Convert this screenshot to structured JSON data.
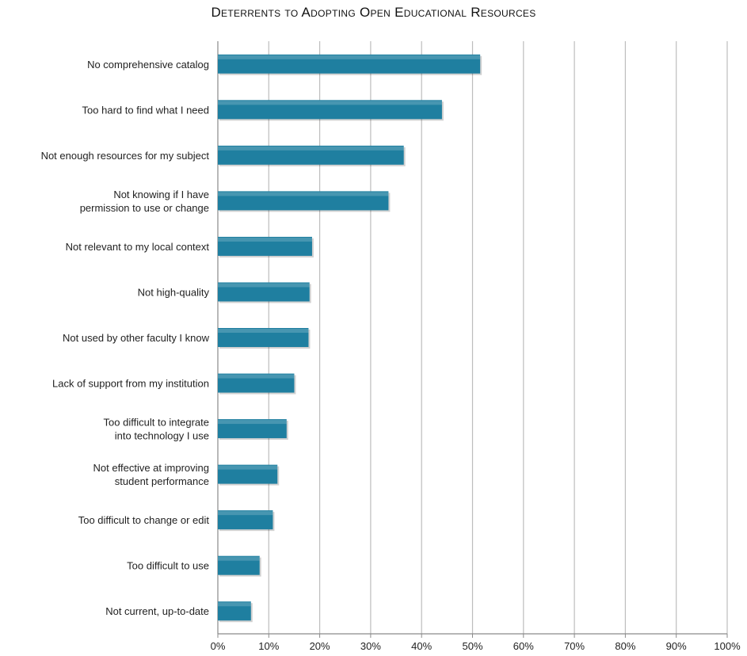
{
  "chart_data": {
    "type": "bar",
    "orientation": "horizontal",
    "title": "Deterrents to Adopting Open Educational Resources",
    "categories": [
      [
        "No comprehensive catalog"
      ],
      [
        "Too hard to find what I need"
      ],
      [
        "Not enough resources for my subject"
      ],
      [
        "Not knowing if I have",
        "permission to use or change"
      ],
      [
        "Not relevant to my local context"
      ],
      [
        "Not high-quality"
      ],
      [
        "Not used by other faculty I know"
      ],
      [
        "Lack of support from my institution"
      ],
      [
        "Too difficult to integrate",
        "into technology I use"
      ],
      [
        "Not effective at improving",
        "student performance"
      ],
      [
        "Too difficult to change or edit"
      ],
      [
        "Too difficult to use"
      ],
      [
        "Not current, up-to-date"
      ]
    ],
    "values": [
      51.5,
      44,
      36.5,
      33.5,
      18.5,
      18,
      17.8,
      15,
      13.5,
      11.7,
      10.8,
      8.2,
      6.5
    ],
    "xlim": [
      0,
      100
    ],
    "x_ticks": [
      "0%",
      "10%",
      "20%",
      "30%",
      "40%",
      "50%",
      "60%",
      "70%",
      "80%",
      "90%",
      "100%"
    ],
    "xlabel": "",
    "ylabel": "",
    "grid": "vertical",
    "legend": "none",
    "bar_color": "#1f7fa0",
    "grid_color": "#bdbdbd"
  }
}
